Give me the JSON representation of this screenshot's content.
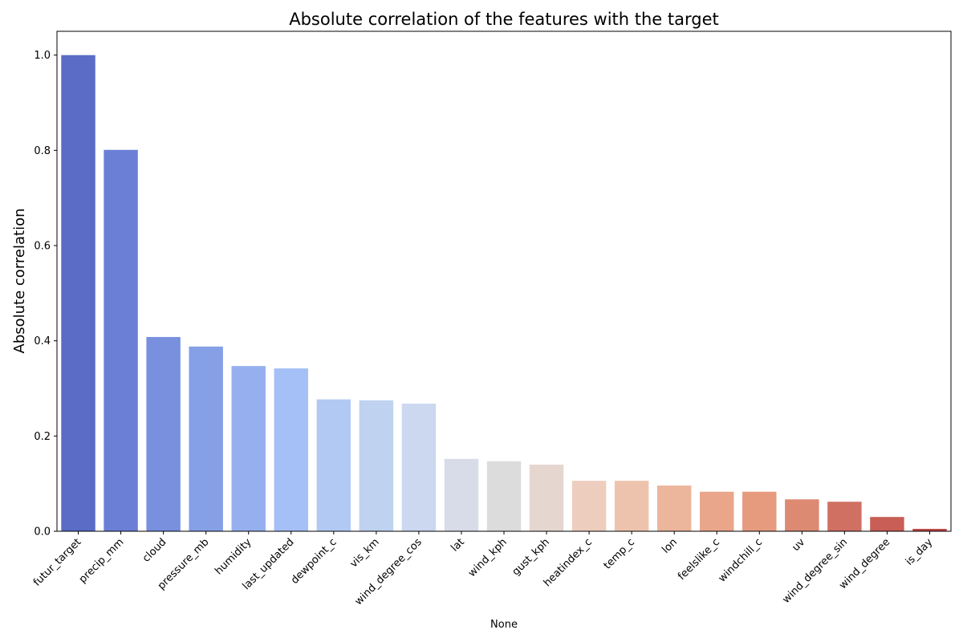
{
  "chart_data": {
    "type": "bar",
    "title": "Absolute correlation of the features with the target",
    "xlabel": "None",
    "ylabel": "Absolute correlation",
    "ylim": [
      0,
      1.05
    ],
    "yticks": [
      "0.0",
      "0.2",
      "0.4",
      "0.6",
      "0.8",
      "1.0"
    ],
    "grid": false,
    "legend": "none",
    "palette": "coolwarm",
    "categories": [
      "futur_target",
      "precip_mm",
      "cloud",
      "pressure_mb",
      "humidity",
      "last_updated",
      "dewpoint_c",
      "vis_km",
      "wind_degree_cos",
      "lat",
      "wind_kph",
      "gust_kph",
      "heatindex_c",
      "temp_c",
      "lon",
      "feelslike_c",
      "windchill_c",
      "uv",
      "wind_degree_sin",
      "wind_degree",
      "is_day"
    ],
    "values": [
      1.0,
      0.801,
      0.408,
      0.388,
      0.347,
      0.342,
      0.277,
      0.275,
      0.268,
      0.152,
      0.147,
      0.14,
      0.106,
      0.106,
      0.096,
      0.083,
      0.083,
      0.067,
      0.062,
      0.03,
      0.005
    ],
    "colors": [
      "#5a6cc6",
      "#6b7fd7",
      "#7890de",
      "#86a0e8",
      "#96b0ef",
      "#a5c0f6",
      "#b2c9f4",
      "#bfd2f0",
      "#cbd8ef",
      "#d7dce8",
      "#dcdcdc",
      "#e5d7d0",
      "#edcdbd",
      "#eec3ad",
      "#ecb69d",
      "#e9a68a",
      "#e69a7e",
      "#dc8a72",
      "#d07062",
      "#c85e55",
      "#bc4644"
    ]
  }
}
